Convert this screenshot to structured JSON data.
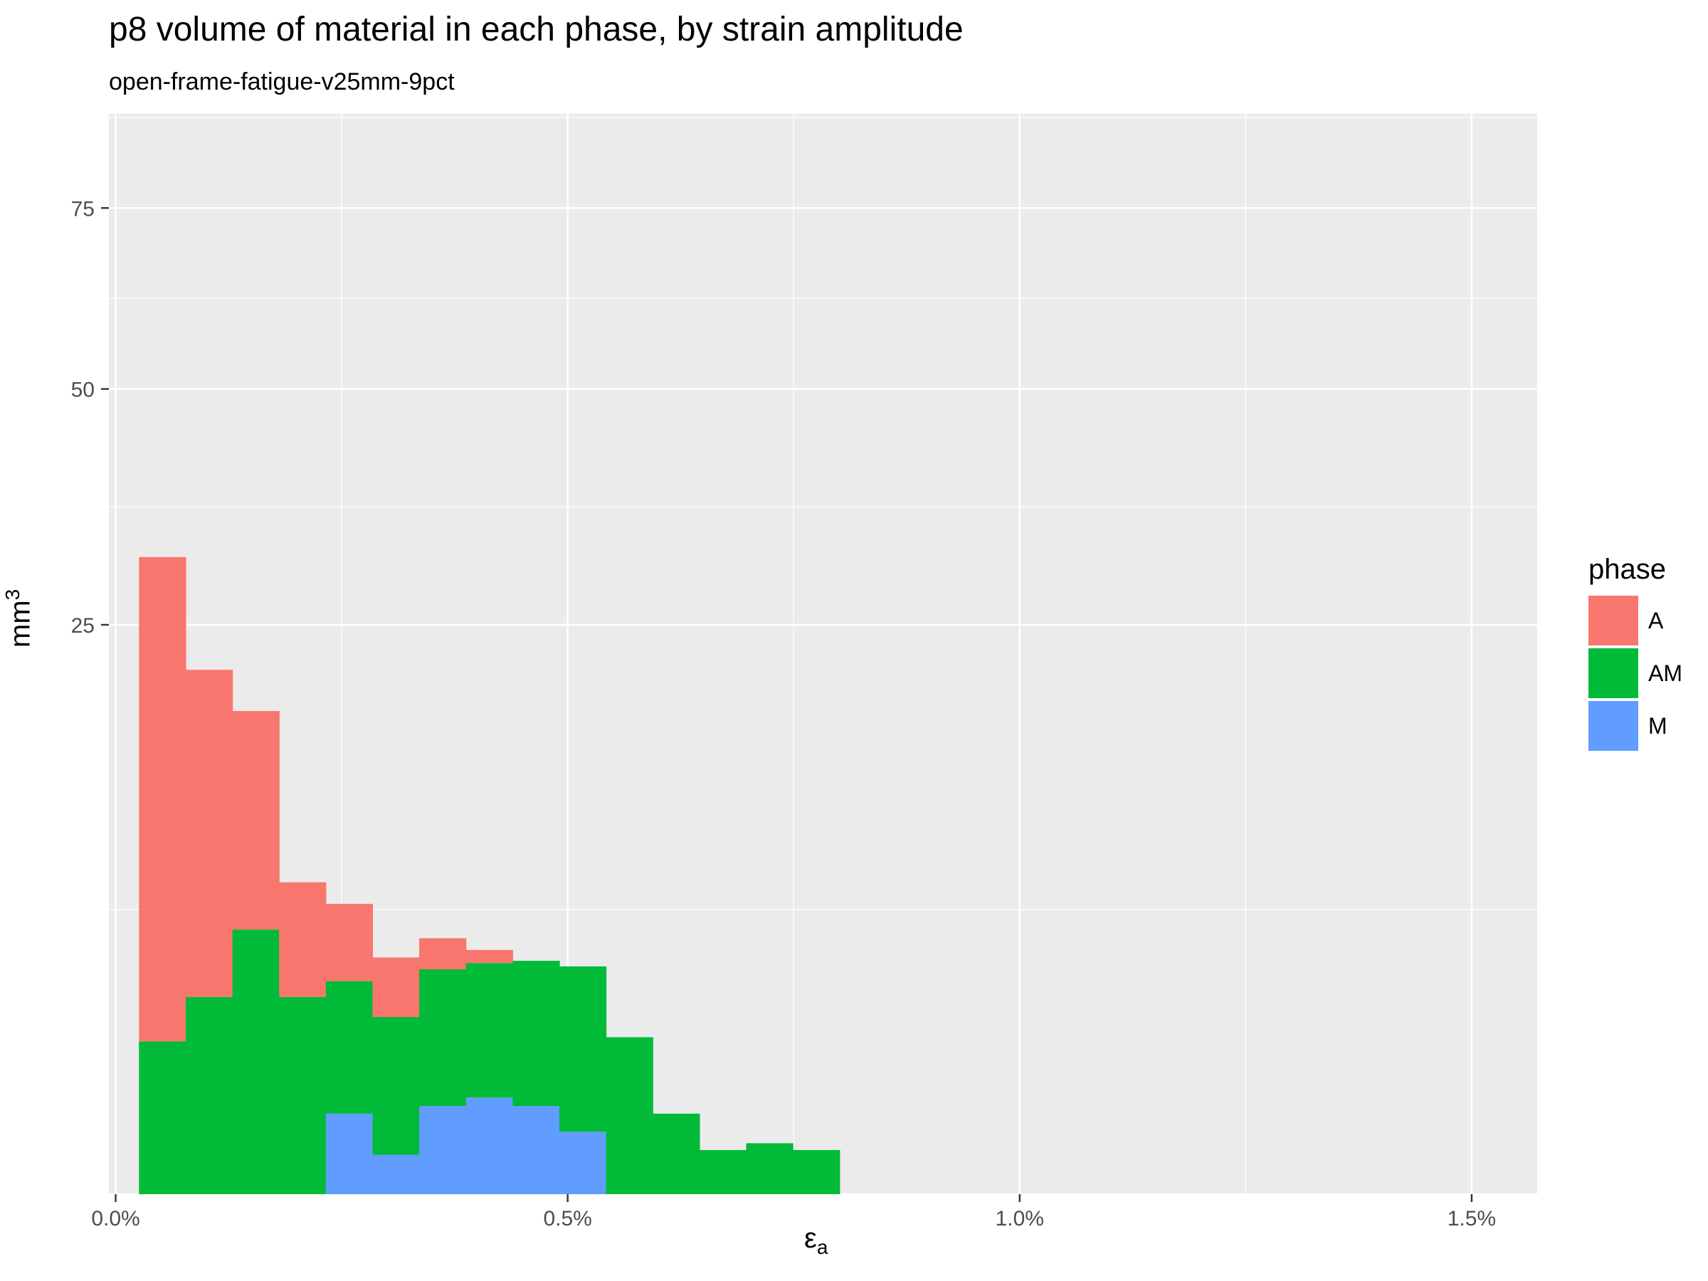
{
  "chart_data": {
    "type": "bar",
    "title": "p8 volume of material in each phase, by strain amplitude",
    "subtitle": "open-frame-fatigue-v25mm-9pct",
    "xlabel_main": "ε",
    "xlabel_sub": "a",
    "ylabel_main": "mm",
    "ylabel_sup": "3",
    "xlim": [
      -7.5e-05,
      0.015725
    ],
    "x_ticks": [
      0.0,
      0.005,
      0.01,
      0.015
    ],
    "x_tick_labels": [
      "0.0%",
      "0.5%",
      "1.0%",
      "1.5%"
    ],
    "y_scale": "sqrt",
    "ylim": [
      0,
      90
    ],
    "y_ticks": [
      25,
      50,
      75
    ],
    "y_tick_labels": [
      "25",
      "50",
      "75"
    ],
    "grid": true,
    "legend_title": "phase",
    "legend_position": "right",
    "bin_width": 0.000517,
    "bin_left_edges": [
      0.000258,
      0.000775,
      0.001292,
      0.001808,
      0.002325,
      0.002842,
      0.003358,
      0.003875,
      0.004392,
      0.004908,
      0.005425,
      0.005942,
      0.006458,
      0.006975,
      0.007492
    ],
    "series": [
      {
        "name": "A",
        "color": "#F8766D",
        "values": [
          29.5,
          18.2,
          12.6,
          4.5,
          3.0,
          1.9,
          1.15,
          0.48,
          0.0,
          0.0,
          0.0,
          0.0,
          0.0,
          0.0,
          0.0
        ]
      },
      {
        "name": "AM",
        "color": "#00BA38",
        "values": [
          1.8,
          3.0,
          5.4,
          3.0,
          3.0,
          2.3,
          3.3,
          3.4,
          3.6,
          3.7,
          1.9,
          0.5,
          0.15,
          0.2,
          0.15
        ]
      },
      {
        "name": "M",
        "color": "#619CFF",
        "values": [
          0.0,
          0.0,
          0.0,
          0.0,
          0.5,
          0.12,
          0.6,
          0.72,
          0.6,
          0.3,
          0.0,
          0.0,
          0.0,
          0.0,
          0.0
        ]
      }
    ]
  }
}
